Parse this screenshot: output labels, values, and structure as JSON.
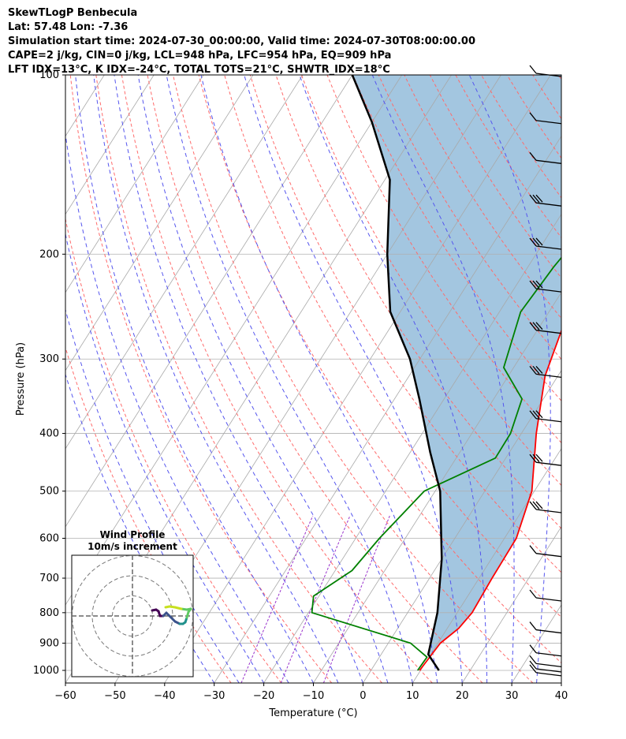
{
  "header": {
    "line1": "SkewTLogP Benbecula",
    "line2": "Lat: 57.48   Lon: -7.36",
    "line3": "Simulation start time: 2024-07-30_00:00:00, Valid time: 2024-07-30T08:00:00.00",
    "line4": "CAPE=2 j/kg, CIN=0 j/kg, LCL=948 hPa, LFC=954 hPa, EQ=909 hPa",
    "line5": "LFT IDX=13°C, K IDX=-24°C, TOTAL TOTS=21°C, SHWTR_IDX=18°C"
  },
  "chart_data": {
    "type": "line",
    "title": "SkewTLogP Benbecula",
    "xlabel": "Temperature (°C)",
    "ylabel": "Pressure (hPa)",
    "xlim": [
      -60,
      40
    ],
    "ylim": [
      1050,
      100
    ],
    "y_scale": "log",
    "x_ticks": [
      "−60",
      "−50",
      "−40",
      "−30",
      "−20",
      "−10",
      "0",
      "10",
      "20",
      "30",
      "40"
    ],
    "y_ticks": [
      "100",
      "200",
      "300",
      "400",
      "500",
      "600",
      "700",
      "800",
      "900",
      "1000"
    ],
    "grid": true,
    "series": [
      {
        "role": "temperature",
        "color": "#ff0000",
        "points": [
          [
            9.8,
            1000
          ],
          [
            10.5,
            900
          ],
          [
            12.3,
            850
          ],
          [
            13.0,
            800
          ],
          [
            12.6,
            700
          ],
          [
            12.4,
            600
          ],
          [
            9.5,
            500
          ],
          [
            3.0,
            400
          ],
          [
            -2.6,
            320
          ],
          [
            -6.1,
            250
          ],
          [
            -7.3,
            220
          ],
          [
            -5.9,
            200
          ],
          [
            1.5,
            170
          ],
          [
            4.4,
            150
          ],
          [
            9.6,
            120
          ],
          [
            14.4,
            100
          ]
        ]
      },
      {
        "role": "dewpoint",
        "color": "#008000",
        "points": [
          [
            9.4,
            1000
          ],
          [
            9.6,
            950
          ],
          [
            4.5,
            900
          ],
          [
            -19.3,
            800
          ],
          [
            -21.1,
            750
          ],
          [
            -16.6,
            680
          ],
          [
            -15.2,
            600
          ],
          [
            -12.2,
            500
          ],
          [
            -2.1,
            440
          ],
          [
            -2.2,
            400
          ],
          [
            -4.3,
            350
          ],
          [
            -12.0,
            310
          ],
          [
            -15.7,
            250
          ],
          [
            -14.8,
            210
          ],
          [
            -13.5,
            185
          ],
          [
            -10.5,
            150
          ],
          [
            -9.7,
            140
          ],
          [
            -8.0,
            100
          ]
        ]
      },
      {
        "role": "parcel",
        "color": "#000000",
        "points": [
          [
            13.7,
            1000
          ],
          [
            9.5,
            940
          ],
          [
            6.0,
            800
          ],
          [
            0.0,
            650
          ],
          [
            -9.0,
            500
          ],
          [
            -16.0,
            430
          ],
          [
            -25.0,
            350
          ],
          [
            -32.0,
            300
          ],
          [
            -42.0,
            250
          ],
          [
            -50.0,
            200
          ],
          [
            -59.0,
            150
          ],
          [
            -70.0,
            120
          ],
          [
            -80.0,
            100
          ]
        ]
      }
    ],
    "cape_fill_color": "#a3c6e0",
    "wind_barbs": {
      "pressures": [
        100,
        120,
        140,
        165,
        195,
        230,
        270,
        320,
        380,
        450,
        540,
        640,
        760,
        860,
        940,
        980,
        1000,
        1015
      ]
    },
    "hodograph": {
      "title": "Wind Profile",
      "subtitle": "10m/s increment",
      "rings": [
        1,
        2,
        3
      ],
      "colors": [
        "#440154",
        "#3b528b",
        "#21918c",
        "#5ec962",
        "#c7e020"
      ]
    }
  }
}
